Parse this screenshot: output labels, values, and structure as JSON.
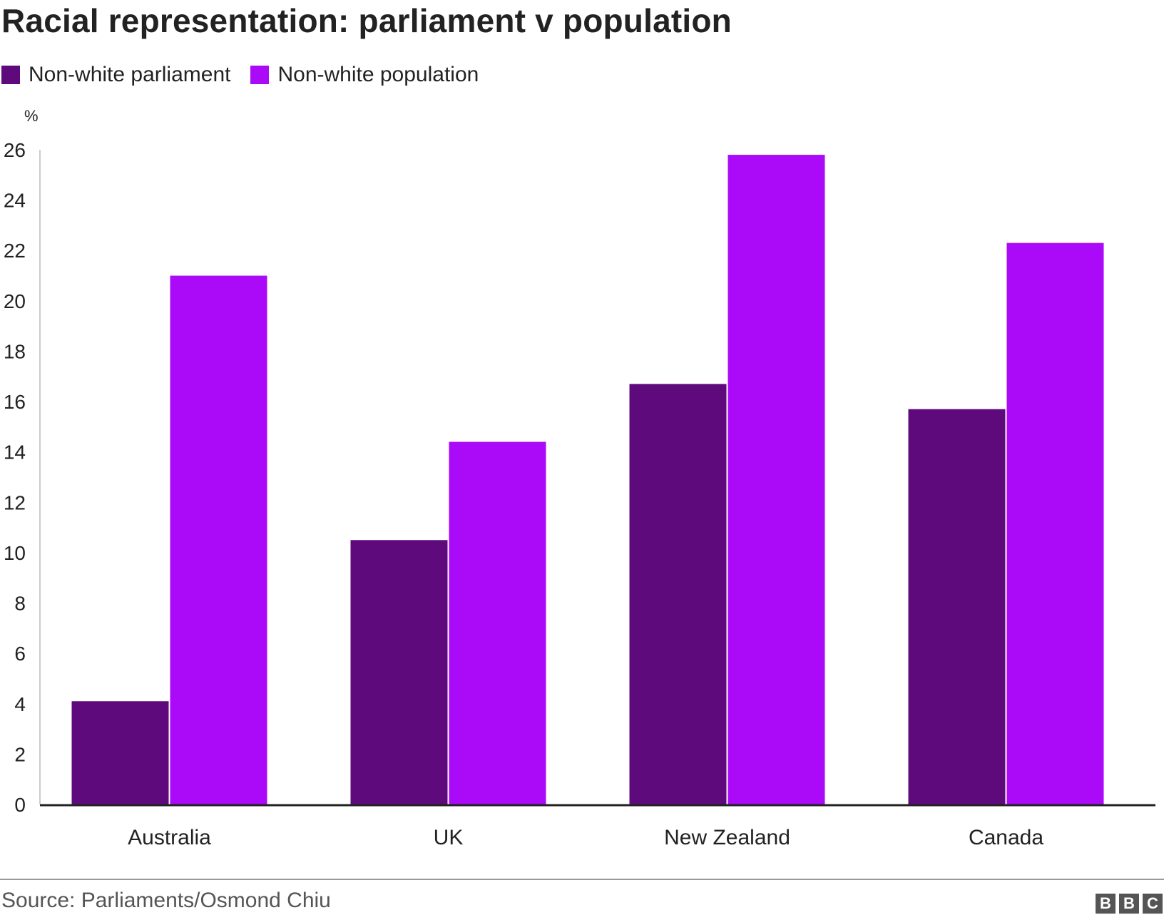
{
  "header": {
    "title": "Racial representation: parliament v population"
  },
  "legend": {
    "items": [
      {
        "label": "Non-white parliament",
        "color": "#5e0a7c"
      },
      {
        "label": "Non-white population",
        "color": "#aa0af7"
      }
    ]
  },
  "chart_data": {
    "type": "bar",
    "title": "Racial representation: parliament v population",
    "unit_label": "%",
    "categories": [
      "Australia",
      "UK",
      "New Zealand",
      "Canada"
    ],
    "series": [
      {
        "name": "Non-white parliament",
        "values": [
          4.1,
          10.5,
          16.7,
          15.7
        ]
      },
      {
        "name": "Non-white population",
        "values": [
          21.0,
          14.4,
          25.8,
          22.3
        ]
      }
    ],
    "ylim": [
      0,
      26
    ],
    "yticks": [
      0,
      2,
      4,
      6,
      8,
      10,
      12,
      14,
      16,
      18,
      20,
      22,
      24,
      26
    ],
    "grid": false,
    "legend_position": "top-left"
  },
  "footer": {
    "source": "Source: Parliaments/Osmond Chiu",
    "logo_letters": [
      "B",
      "B",
      "C"
    ]
  }
}
